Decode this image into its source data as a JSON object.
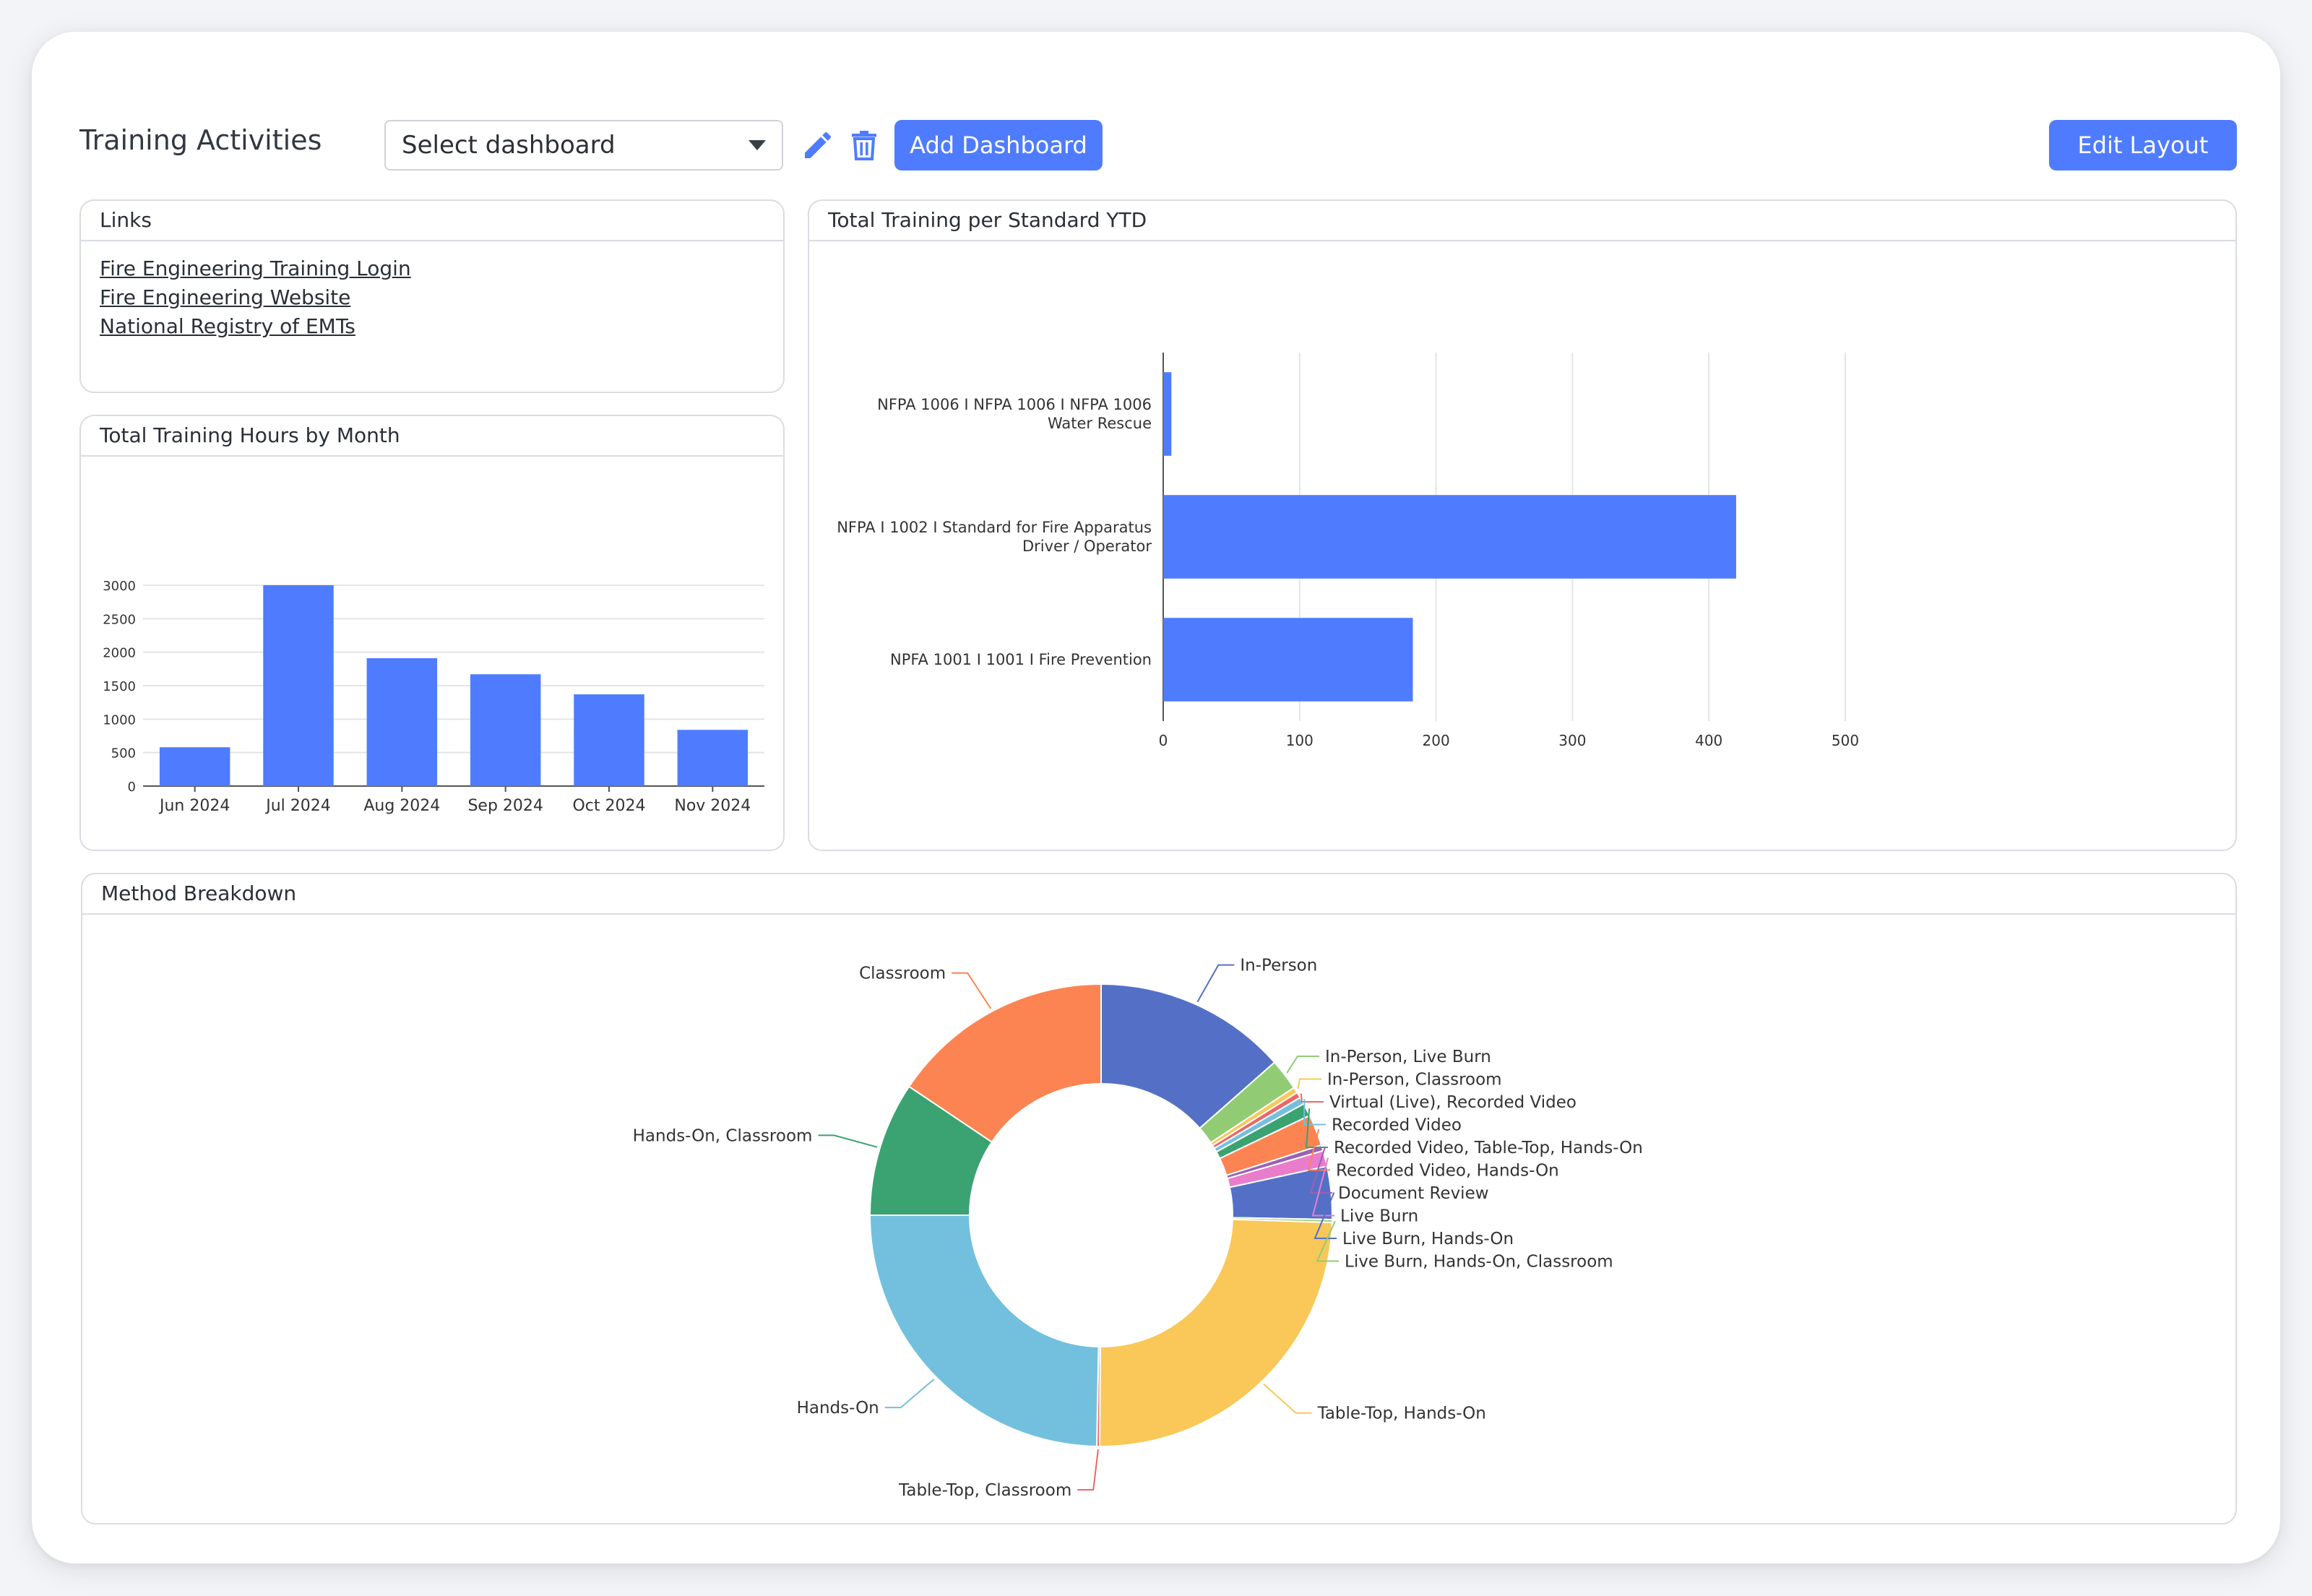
{
  "header": {
    "title": "Training Activities",
    "select_value": "Select dashboard",
    "add_dashboard_label": "Add Dashboard",
    "edit_layout_label": "Edit Layout",
    "accent": "#4f7cff"
  },
  "icons": {
    "edit": "pencil-icon",
    "delete": "trash-icon",
    "dropdown": "chevron-down-icon"
  },
  "links_panel": {
    "title": "Links",
    "items": [
      "Fire Engineering Training Login",
      "Fire Engineering Website",
      "National Registry of EMTs"
    ]
  },
  "chart_data": [
    {
      "id": "monthly",
      "panel_title": "Total Training Hours by Month",
      "type": "bar",
      "categories": [
        "Jun 2024",
        "Jul 2024",
        "Aug 2024",
        "Sep 2024",
        "Oct 2024",
        "Nov 2024"
      ],
      "values": [
        580,
        3000,
        1910,
        1670,
        1370,
        840
      ],
      "yticks": [
        0,
        500,
        1000,
        1500,
        2000,
        2500,
        3000
      ],
      "ylim": [
        0,
        3000
      ],
      "grid": true,
      "color": "#4f7cff"
    },
    {
      "id": "standards",
      "panel_title": "Total Training per Standard YTD",
      "type": "bar",
      "orientation": "horizontal",
      "categories": [
        [
          "NFPA 1006 I NFPA 1006 I NFPA 1006",
          "Water Rescue"
        ],
        [
          "NFPA I 1002 I Standard for Fire Apparatus",
          "Driver / Operator"
        ],
        [
          "NPFA 1001 I 1001 I Fire Prevention"
        ]
      ],
      "values": [
        6,
        420,
        183
      ],
      "xticks": [
        0,
        100,
        200,
        300,
        400,
        500
      ],
      "xlim": [
        0,
        500
      ],
      "grid": true,
      "color": "#4f7cff"
    },
    {
      "id": "methods",
      "panel_title": "Method Breakdown",
      "type": "pie",
      "donut": true,
      "slices": [
        {
          "label": "In-Person",
          "value": 13.5,
          "color": "#5470c6"
        },
        {
          "label": "In-Person, Live Burn",
          "value": 2.2,
          "color": "#91cc75"
        },
        {
          "label": "In-Person, Classroom",
          "value": 0.4,
          "color": "#fac858"
        },
        {
          "label": "Virtual (Live), Recorded Video",
          "value": 0.4,
          "color": "#ee6666"
        },
        {
          "label": "Recorded Video",
          "value": 0.5,
          "color": "#73c0de"
        },
        {
          "label": "Recorded Video, Table-Top, Hands-On",
          "value": 0.9,
          "color": "#3ba272"
        },
        {
          "label": "Recorded Video, Hands-On",
          "value": 2.2,
          "color": "#fc8452"
        },
        {
          "label": "Document Review",
          "value": 0.4,
          "color": "#9a60b4"
        },
        {
          "label": "Live Burn",
          "value": 1.1,
          "color": "#ea7ccc"
        },
        {
          "label": "Live Burn, Hands-On",
          "value": 3.7,
          "color": "#5470c6"
        },
        {
          "label": "Live Burn, Hands-On, Classroom",
          "value": 0.2,
          "color": "#91cc75"
        },
        {
          "label": "Table-Top, Hands-On",
          "value": 24.6,
          "color": "#fac858"
        },
        {
          "label": "Table-Top, Classroom",
          "value": 0.2,
          "color": "#ee6666"
        },
        {
          "label": "Hands-On",
          "value": 24.7,
          "color": "#73c0de"
        },
        {
          "label": "Hands-On, Classroom",
          "value": 9.4,
          "color": "#3ba272"
        },
        {
          "label": "Classroom",
          "value": 15.6,
          "color": "#fc8452"
        }
      ]
    }
  ]
}
